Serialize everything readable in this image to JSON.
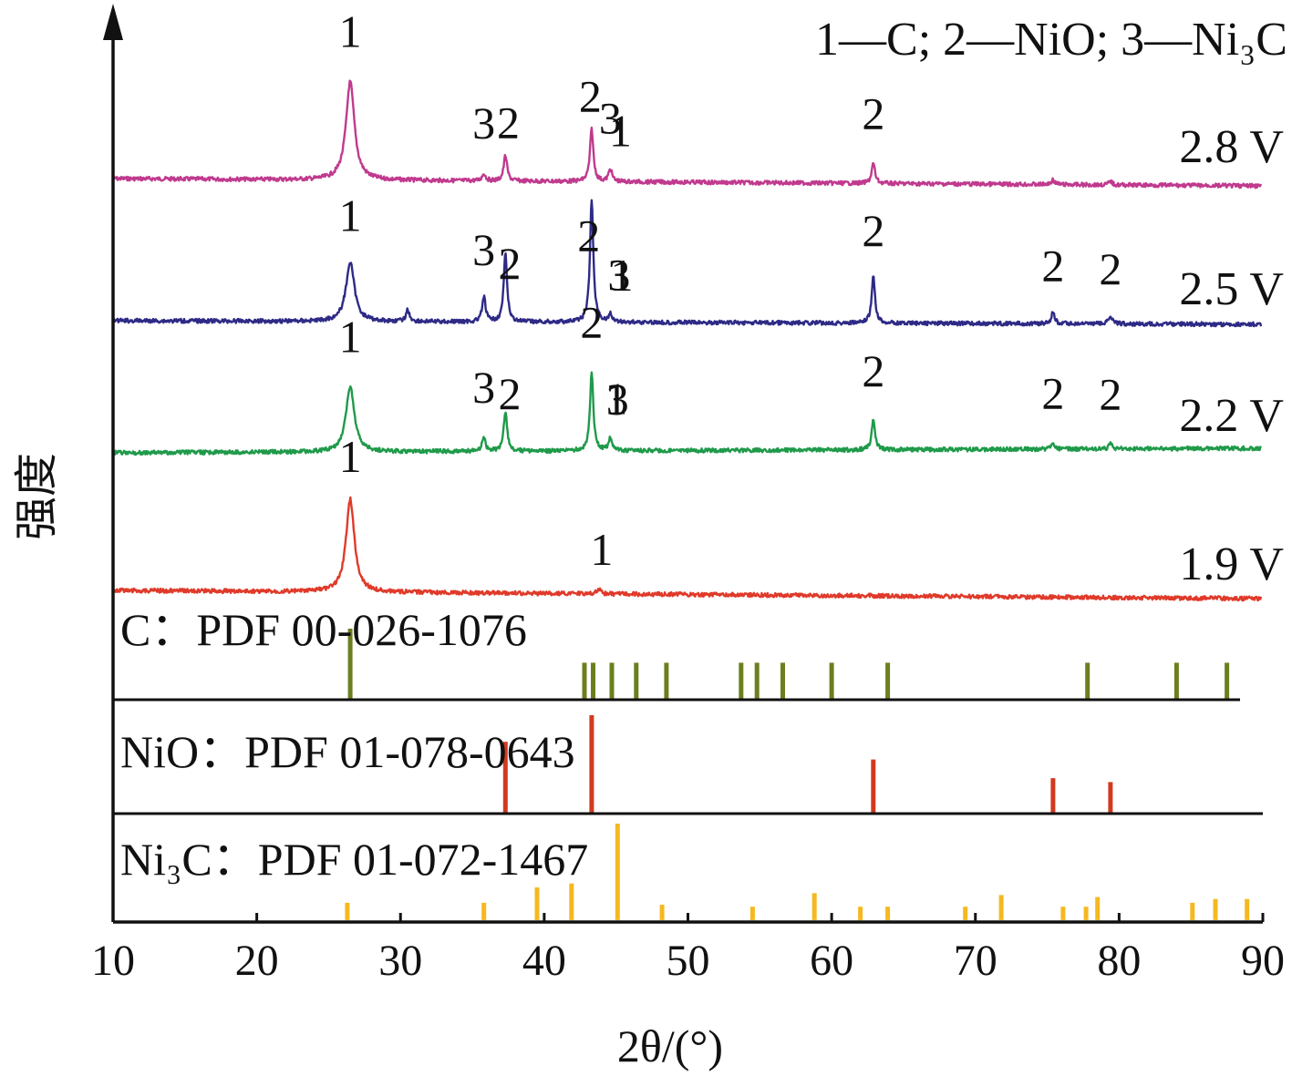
{
  "chart_data": {
    "type": "line",
    "title": "",
    "xlabel": "2θ/(°)",
    "ylabel": "强度",
    "xlim": [
      10,
      90
    ],
    "xticks": [
      "10",
      "20",
      "30",
      "40",
      "50",
      "60",
      "70",
      "80",
      "90"
    ],
    "legend_text": "1—C; 2—NiO; 3—Ni₃C",
    "colors": {
      "v28": "#c03a8e",
      "v25": "#2e2a86",
      "v22": "#1f9a4a",
      "v19": "#e03a2a",
      "pdf_c": "#6b7f1f",
      "pdf_nio": "#d13a20",
      "pdf_ni3c": "#f5b820",
      "axis": "#111111"
    },
    "series": [
      {
        "name": "2.8 V",
        "color_key": "v28",
        "peaks": [
          {
            "x": 26.5,
            "h": 108
          },
          {
            "x": 35.8,
            "h": 8
          },
          {
            "x": 37.3,
            "h": 28
          },
          {
            "x": 43.3,
            "h": 58
          },
          {
            "x": 44.6,
            "h": 14
          },
          {
            "x": 62.9,
            "h": 22
          },
          {
            "x": 75.4,
            "h": 5
          },
          {
            "x": 79.4,
            "h": 4
          }
        ],
        "labels": [
          {
            "x": 26.5,
            "text": "1"
          },
          {
            "x": 35.8,
            "text": "3"
          },
          {
            "x": 37.5,
            "text": "2"
          },
          {
            "x": 43.2,
            "text": "2"
          },
          {
            "x": 44.6,
            "text": "3"
          },
          {
            "x": 45.3,
            "text": "1"
          },
          {
            "x": 62.9,
            "text": "2"
          }
        ]
      },
      {
        "name": "2.5 V",
        "color_key": "v25",
        "peaks": [
          {
            "x": 26.5,
            "h": 62
          },
          {
            "x": 30.5,
            "h": 12
          },
          {
            "x": 35.8,
            "h": 26
          },
          {
            "x": 37.3,
            "h": 70
          },
          {
            "x": 43.3,
            "h": 128
          },
          {
            "x": 44.6,
            "h": 8
          },
          {
            "x": 62.9,
            "h": 48
          },
          {
            "x": 75.4,
            "h": 12
          },
          {
            "x": 79.4,
            "h": 9
          }
        ],
        "labels": [
          {
            "x": 26.5,
            "text": "1"
          },
          {
            "x": 35.8,
            "text": "3"
          },
          {
            "x": 37.6,
            "text": "2"
          },
          {
            "x": 43.1,
            "text": "2"
          },
          {
            "x": 45.2,
            "text": "3"
          },
          {
            "x": 45.4,
            "text": "1"
          },
          {
            "x": 62.9,
            "text": "2"
          },
          {
            "x": 75.4,
            "text": "2"
          },
          {
            "x": 79.4,
            "text": "2"
          }
        ]
      },
      {
        "name": "2.2 V",
        "color_key": "v22",
        "peaks": [
          {
            "x": 26.5,
            "h": 68
          },
          {
            "x": 35.8,
            "h": 14
          },
          {
            "x": 37.3,
            "h": 42
          },
          {
            "x": 43.3,
            "h": 82
          },
          {
            "x": 44.6,
            "h": 14
          },
          {
            "x": 62.9,
            "h": 30
          },
          {
            "x": 75.4,
            "h": 6
          },
          {
            "x": 79.4,
            "h": 5
          }
        ],
        "labels": [
          {
            "x": 26.5,
            "text": "1"
          },
          {
            "x": 35.8,
            "text": "3"
          },
          {
            "x": 37.6,
            "text": "2"
          },
          {
            "x": 43.3,
            "text": "2"
          },
          {
            "x": 45.1,
            "text": "3"
          },
          {
            "x": 45.0,
            "text": "1"
          },
          {
            "x": 62.9,
            "text": "2"
          },
          {
            "x": 75.4,
            "text": "2"
          },
          {
            "x": 79.4,
            "text": "2"
          }
        ]
      },
      {
        "name": "1.9 V",
        "color_key": "v19",
        "peaks": [
          {
            "x": 26.5,
            "h": 100
          },
          {
            "x": 43.8,
            "h": 6
          }
        ],
        "labels": [
          {
            "x": 26.5,
            "text": "1"
          },
          {
            "x": 44.0,
            "text": "1"
          }
        ]
      }
    ],
    "references": [
      {
        "name": "C：PDF 00-026-1076",
        "color_key": "pdf_c",
        "lines": [
          {
            "x": 26.5,
            "i": 100
          },
          {
            "x": 42.8,
            "i": 52
          },
          {
            "x": 43.4,
            "i": 52
          },
          {
            "x": 44.7,
            "i": 52
          },
          {
            "x": 46.4,
            "i": 52
          },
          {
            "x": 48.5,
            "i": 52
          },
          {
            "x": 53.7,
            "i": 52
          },
          {
            "x": 54.8,
            "i": 52
          },
          {
            "x": 56.6,
            "i": 52
          },
          {
            "x": 60.0,
            "i": 52
          },
          {
            "x": 63.9,
            "i": 52
          },
          {
            "x": 77.8,
            "i": 52
          },
          {
            "x": 84.0,
            "i": 52
          },
          {
            "x": 87.5,
            "i": 52
          }
        ]
      },
      {
        "name": "NiO：PDF 01-078-0643",
        "color_key": "pdf_nio",
        "lines": [
          {
            "x": 37.3,
            "i": 73
          },
          {
            "x": 43.3,
            "i": 100
          },
          {
            "x": 62.9,
            "i": 55
          },
          {
            "x": 75.4,
            "i": 36
          },
          {
            "x": 79.4,
            "i": 32
          }
        ]
      },
      {
        "name": "Ni₃C：PDF 01-072-1467",
        "color_key": "pdf_ni3c",
        "lines": [
          {
            "x": 26.3,
            "i": 18
          },
          {
            "x": 35.8,
            "i": 18
          },
          {
            "x": 39.5,
            "i": 34
          },
          {
            "x": 41.9,
            "i": 38
          },
          {
            "x": 45.1,
            "i": 100
          },
          {
            "x": 48.2,
            "i": 16
          },
          {
            "x": 54.5,
            "i": 14
          },
          {
            "x": 58.8,
            "i": 28
          },
          {
            "x": 62.0,
            "i": 14
          },
          {
            "x": 63.9,
            "i": 14
          },
          {
            "x": 69.3,
            "i": 14
          },
          {
            "x": 71.8,
            "i": 26
          },
          {
            "x": 76.1,
            "i": 14
          },
          {
            "x": 77.7,
            "i": 14
          },
          {
            "x": 78.5,
            "i": 24
          },
          {
            "x": 85.1,
            "i": 18
          },
          {
            "x": 86.7,
            "i": 22
          },
          {
            "x": 88.9,
            "i": 22
          }
        ]
      }
    ]
  }
}
